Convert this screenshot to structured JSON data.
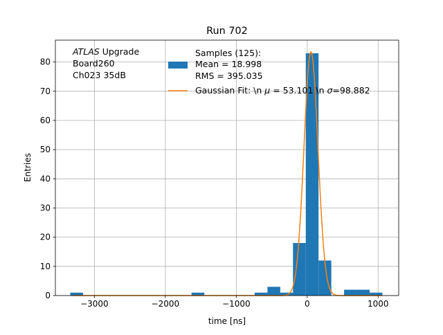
{
  "chart_data": {
    "type": "bar",
    "title": "Run 702",
    "xlabel": "time [ns]",
    "ylabel": "Entries",
    "xlim": [
      -3550,
      1290
    ],
    "ylim": [
      0,
      87.5
    ],
    "grid": true,
    "xticks": [
      -3000,
      -2000,
      -1000,
      0,
      1000
    ],
    "xtick_labels": [
      "−3000",
      "−2000",
      "−1000",
      "0",
      "1000"
    ],
    "yticks": [
      0,
      10,
      20,
      30,
      40,
      50,
      60,
      70,
      80
    ],
    "ytick_labels": [
      "0",
      "10",
      "20",
      "30",
      "40",
      "50",
      "60",
      "70",
      "80"
    ],
    "colors": {
      "histogram": "#1f77b4",
      "fit": "#ff7f0e",
      "grid": "#b0b0b0"
    },
    "annotation": {
      "atlas": "ATLAS",
      "upgrade": " Upgrade",
      "board": " Board260",
      "channel": " Ch023 35dB"
    },
    "legend": {
      "placement": "top-right",
      "samples_header": "Samples (125):",
      "samples_mean": " Mean = 18.998",
      "samples_rms": " RMS = 395.035",
      "fit_pre": "Gaussian Fit: \\n ",
      "fit_mu_symbol": "μ",
      "fit_mid": " = 53.101 \\n ",
      "fit_sigma_symbol": "σ",
      "fit_post": "=98.882"
    },
    "histogram": {
      "bins": [
        {
          "x0": -3340,
          "x1": -3160,
          "count": 1
        },
        {
          "x0": -1630,
          "x1": -1450,
          "count": 1
        },
        {
          "x0": -740,
          "x1": -560,
          "count": 1
        },
        {
          "x0": -560,
          "x1": -380,
          "count": 3
        },
        {
          "x0": -380,
          "x1": -200,
          "count": 1
        },
        {
          "x0": -200,
          "x1": -20,
          "count": 18
        },
        {
          "x0": -20,
          "x1": 160,
          "count": 83
        },
        {
          "x0": 160,
          "x1": 340,
          "count": 12
        },
        {
          "x0": 520,
          "x1": 700,
          "count": 2
        },
        {
          "x0": 700,
          "x1": 880,
          "count": 2
        },
        {
          "x0": 880,
          "x1": 1060,
          "count": 1
        }
      ]
    },
    "fit": {
      "mu": 53.101,
      "sigma": 98.882,
      "amplitude": 83.5,
      "x_start": -3300,
      "x_end": 1050
    }
  }
}
